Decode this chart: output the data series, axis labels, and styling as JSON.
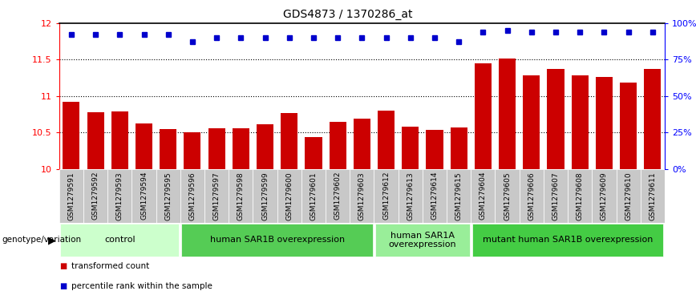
{
  "title": "GDS4873 / 1370286_at",
  "samples": [
    "GSM1279591",
    "GSM1279592",
    "GSM1279593",
    "GSM1279594",
    "GSM1279595",
    "GSM1279596",
    "GSM1279597",
    "GSM1279598",
    "GSM1279599",
    "GSM1279600",
    "GSM1279601",
    "GSM1279602",
    "GSM1279603",
    "GSM1279612",
    "GSM1279613",
    "GSM1279614",
    "GSM1279615",
    "GSM1279604",
    "GSM1279605",
    "GSM1279606",
    "GSM1279607",
    "GSM1279608",
    "GSM1279609",
    "GSM1279610",
    "GSM1279611"
  ],
  "bar_values": [
    10.92,
    10.78,
    10.79,
    10.62,
    10.55,
    10.5,
    10.56,
    10.56,
    10.61,
    10.77,
    10.44,
    10.65,
    10.69,
    10.8,
    10.58,
    10.53,
    10.57,
    11.45,
    11.52,
    11.28,
    11.37,
    11.28,
    11.26,
    11.18,
    11.37
  ],
  "percentile_values": [
    11.85,
    11.85,
    11.85,
    11.85,
    11.85,
    11.75,
    11.8,
    11.8,
    11.8,
    11.8,
    11.8,
    11.8,
    11.8,
    11.8,
    11.8,
    11.8,
    11.75,
    11.88,
    11.9,
    11.88,
    11.88,
    11.88,
    11.88,
    11.88,
    11.88
  ],
  "bar_color": "#cc0000",
  "percentile_color": "#0000cc",
  "ylim": [
    10,
    12
  ],
  "yticks_left": [
    10,
    10.5,
    11,
    11.5,
    12
  ],
  "ytick_labels_right": [
    "0%",
    "25%",
    "50%",
    "75%",
    "100%"
  ],
  "dotted_lines": [
    10.5,
    11.0,
    11.5
  ],
  "groups": [
    {
      "label": "control",
      "start": 0,
      "end": 5,
      "color": "#ccffcc"
    },
    {
      "label": "human SAR1B overexpression",
      "start": 5,
      "end": 13,
      "color": "#55cc55"
    },
    {
      "label": "human SAR1A\noverexpression",
      "start": 13,
      "end": 17,
      "color": "#99ee99"
    },
    {
      "label": "mutant human SAR1B overexpression",
      "start": 17,
      "end": 25,
      "color": "#44cc44"
    }
  ],
  "genotype_label": "genotype/variation",
  "legend_items": [
    {
      "color": "#cc0000",
      "label": "transformed count"
    },
    {
      "color": "#0000cc",
      "label": "percentile rank within the sample"
    }
  ],
  "title_fontsize": 10,
  "tick_label_fontsize": 6.5,
  "group_label_fontsize": 8
}
